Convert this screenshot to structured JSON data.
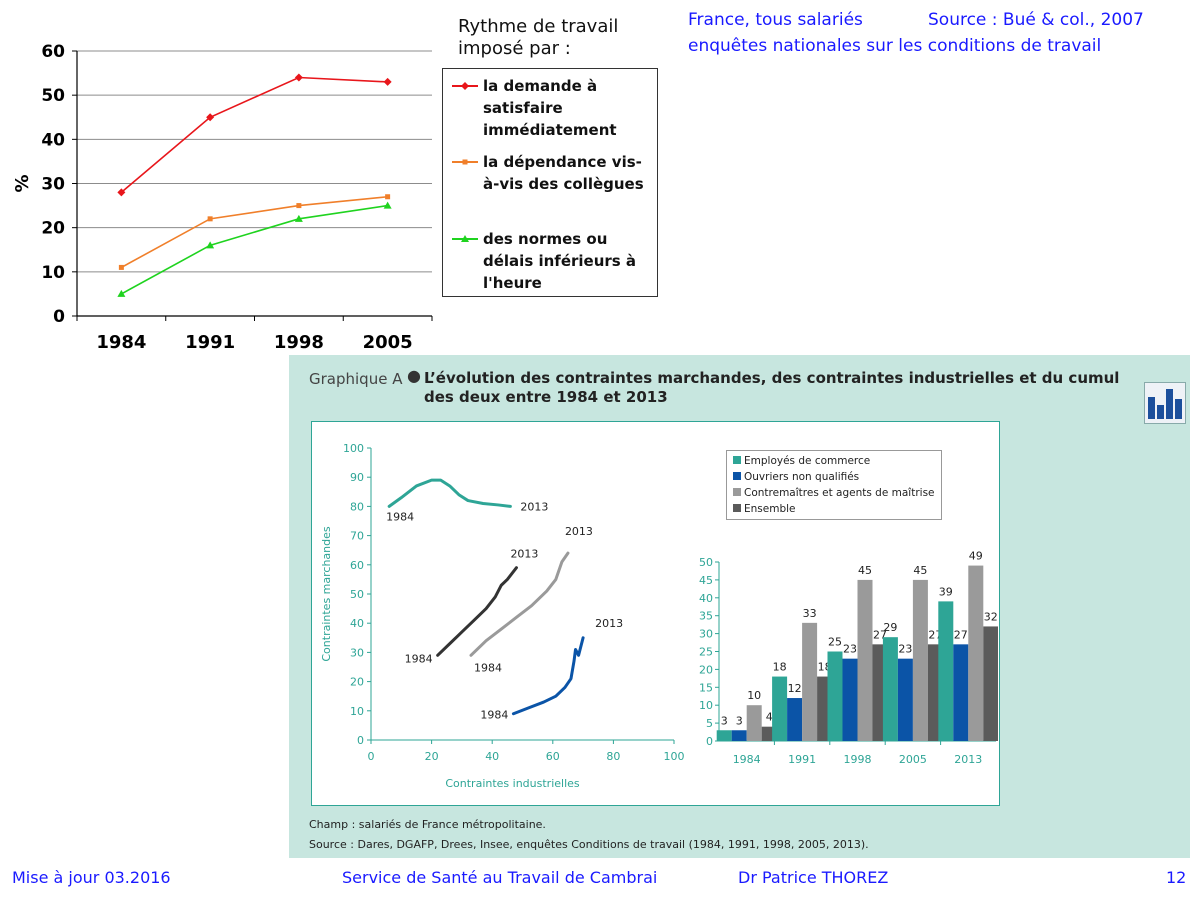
{
  "header": {
    "line1_left": "France, tous salariés",
    "line1_right": "Source : Bué & col., 2007",
    "line2": "enquêtes nationales sur les conditions de travail"
  },
  "legend_title": [
    "Rythme de travail",
    "imposé par :"
  ],
  "colors": {
    "red": "#e8161b",
    "orange": "#f07f2a",
    "green": "#1fd31f",
    "teal": "#2ea596",
    "darkblue": "#0b54a7",
    "lightgray": "#9a9a9a",
    "darkgray": "#5b5b5b",
    "panel_bg": "#c7e6df"
  },
  "chart_data": [
    {
      "type": "line",
      "title": "",
      "xlabel": "",
      "ylabel": "%",
      "ylim": [
        0,
        60
      ],
      "yticks": [
        0,
        10,
        20,
        30,
        40,
        50,
        60
      ],
      "x": [
        "1984",
        "1991",
        "1998",
        "2005"
      ],
      "grid": true,
      "legend_position": "right",
      "series": [
        {
          "name": "la demande à satisfaire immédiatement",
          "values": [
            28,
            45,
            54,
            53
          ],
          "color": "#e8161b",
          "marker": "diamond"
        },
        {
          "name": "la dépendance vis-à-vis des collègues",
          "values": [
            11,
            22,
            25,
            27
          ],
          "color": "#f07f2a",
          "marker": "square"
        },
        {
          "name": "des normes ou délais inférieurs à l'heure",
          "values": [
            5,
            16,
            22,
            25
          ],
          "color": "#1fd31f",
          "marker": "triangle"
        }
      ]
    },
    {
      "type": "line",
      "title_prefix": "Graphique A",
      "title": "L’évolution des contraintes marchandes, des contraintes industrielles et du cumul des deux entre 1984 et 2013",
      "xlabel": "Contraintes industrielles",
      "ylabel": "Contraintes marchandes",
      "xlim": [
        0,
        100
      ],
      "ylim": [
        0,
        100
      ],
      "xticks": [
        0,
        20,
        40,
        60,
        80,
        100
      ],
      "yticks": [
        0,
        10,
        20,
        30,
        40,
        50,
        60,
        70,
        80,
        90,
        100
      ],
      "series": [
        {
          "color": "#2ea596",
          "start_label": "1984",
          "end_label": "2013",
          "points": [
            [
              6,
              80
            ],
            [
              10,
              83
            ],
            [
              15,
              87
            ],
            [
              20,
              89
            ],
            [
              23,
              89
            ],
            [
              26,
              87
            ],
            [
              29,
              84
            ],
            [
              32,
              82
            ],
            [
              37,
              81
            ],
            [
              42,
              80.5
            ],
            [
              46,
              80
            ]
          ]
        },
        {
          "color": "#333333",
          "start_label": "1984",
          "end_label": "2013",
          "points": [
            [
              22,
              29
            ],
            [
              26,
              33
            ],
            [
              30,
              37
            ],
            [
              34,
              41
            ],
            [
              38,
              45
            ],
            [
              41,
              49
            ],
            [
              43,
              53
            ],
            [
              45,
              55
            ],
            [
              48,
              59
            ]
          ]
        },
        {
          "color": "#9a9a9a",
          "start_label": "1984",
          "end_label": "2013",
          "points": [
            [
              33,
              29
            ],
            [
              38,
              34
            ],
            [
              43,
              38
            ],
            [
              48,
              42
            ],
            [
              53,
              46
            ],
            [
              58,
              51
            ],
            [
              61,
              55
            ],
            [
              63,
              61
            ],
            [
              65,
              64
            ]
          ]
        },
        {
          "color": "#0b54a7",
          "start_label": "1984",
          "end_label": "2013",
          "points": [
            [
              47,
              9
            ],
            [
              52,
              11
            ],
            [
              57,
              13
            ],
            [
              61,
              15
            ],
            [
              64,
              18
            ],
            [
              66,
              21
            ],
            [
              67,
              27
            ],
            [
              67.5,
              31
            ],
            [
              68.5,
              29
            ],
            [
              69.5,
              33
            ],
            [
              70,
              35
            ]
          ]
        }
      ]
    },
    {
      "type": "bar",
      "categories": [
        "1984",
        "1991",
        "1998",
        "2005",
        "2013"
      ],
      "ylim": [
        0,
        50
      ],
      "yticks": [
        0,
        5,
        10,
        15,
        20,
        25,
        30,
        35,
        40,
        45,
        50
      ],
      "legend_position": "top-left",
      "series": [
        {
          "name": "Employés de commerce",
          "values": [
            3,
            18,
            25,
            29,
            39
          ],
          "color": "#2ea596"
        },
        {
          "name": "Ouvriers non qualifiés",
          "values": [
            3,
            12,
            23,
            23,
            27
          ],
          "color": "#0b54a7"
        },
        {
          "name": "Contremaîtres et agents de maîtrise",
          "values": [
            10,
            33,
            45,
            45,
            49
          ],
          "color": "#9a9a9a"
        },
        {
          "name": "Ensemble",
          "values": [
            4,
            18,
            27,
            27,
            32
          ],
          "color": "#5b5b5b"
        }
      ]
    }
  ],
  "notes": {
    "champ": "Champ : salariés de France métropolitaine.",
    "source": "Source : Dares, DGAFP, Drees, Insee, enquêtes Conditions de travail (1984, 1991, 1998, 2005, 2013)."
  },
  "footer": {
    "date": "Mise à jour 03.2016",
    "service": "Service de Santé au Travail de Cambrai",
    "author": "Dr Patrice THOREZ",
    "page": "12"
  }
}
